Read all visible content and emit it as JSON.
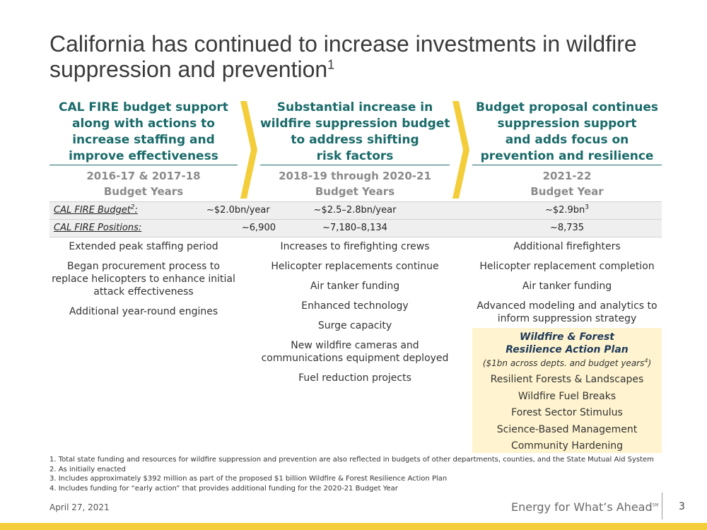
{
  "title": "California has continued to increase investments in wildfire suppression and prevention",
  "title_sup": "1",
  "columns": [
    {
      "header": [
        "CAL FIRE budget support",
        "along with actions to",
        "increase staffing and",
        "improve effectiveness"
      ],
      "years": [
        "2016-17 & 2017-18",
        "Budget Years"
      ],
      "items": [
        "Extended peak staffing period",
        "Began procurement process to replace helicopters to enhance initial attack effectiveness",
        "Additional year-round engines"
      ]
    },
    {
      "header": [
        "Substantial increase in",
        "wildfire suppression budget",
        "to address shifting",
        "risk factors"
      ],
      "years": [
        "2018-19 through 2020-21",
        "Budget Years"
      ],
      "items": [
        "Increases to firefighting crews",
        "Helicopter replacements continue",
        "Air tanker funding",
        "Enhanced technology",
        "Surge capacity",
        "New wildfire cameras and communications equipment deployed",
        "Fuel reduction projects"
      ]
    },
    {
      "header": [
        "Budget proposal continues",
        "suppression support",
        "and adds focus on",
        "prevention and resilience"
      ],
      "years": [
        "2021-22",
        "Budget Year"
      ],
      "items": [
        "Additional firefighters",
        "Helicopter replacement completion",
        "Air tanker funding",
        "Advanced modeling and analytics to inform suppression strategy"
      ]
    }
  ],
  "budget_row": {
    "label": "CAL FIRE Budget",
    "label_sup": "2",
    "label_suffix": ":",
    "v1": "~$2.0bn/year",
    "v2": "~$2.5–2.8bn/year",
    "v3": "~$2.9bn",
    "v3_sup": "3"
  },
  "positions_row": {
    "label": "CAL FIRE Positions:",
    "v1": "~6,900",
    "v2": "~7,180–8,134",
    "v3": "~8,735"
  },
  "plan": {
    "title_line1": "Wildfire & Forest",
    "title_line2": "Resilience Action Plan",
    "subtitle": "($1bn across depts. and budget years",
    "subtitle_sup": "4",
    "subtitle_end": ")",
    "items": [
      "Resilient Forests & Landscapes",
      "Wildfire Fuel Breaks",
      "Forest Sector Stimulus",
      "Science-Based Management",
      "Community Hardening"
    ]
  },
  "footnotes": [
    "1. Total state funding and resources for wildfire suppression and prevention are also reflected in budgets of other departments, counties, and the State Mutual Aid System",
    "2. As initially enacted",
    "3. Includes approximately $392 million as part of the proposed $1 billion Wildfire & Forest Resilience Action Plan",
    "4. Includes funding for “early action” that provides additional funding for the 2020-21 Budget Year"
  ],
  "footer": {
    "date": "April 27, 2021",
    "tagline": "Energy for What’s Ahead",
    "tagline_mark": "SM",
    "page": "3"
  },
  "colors": {
    "heading_teal": "#1a6a6a",
    "chevron_yellow": "#f3cd3a",
    "plan_bg": "#fff4cf",
    "band_gray": "#efefef"
  }
}
